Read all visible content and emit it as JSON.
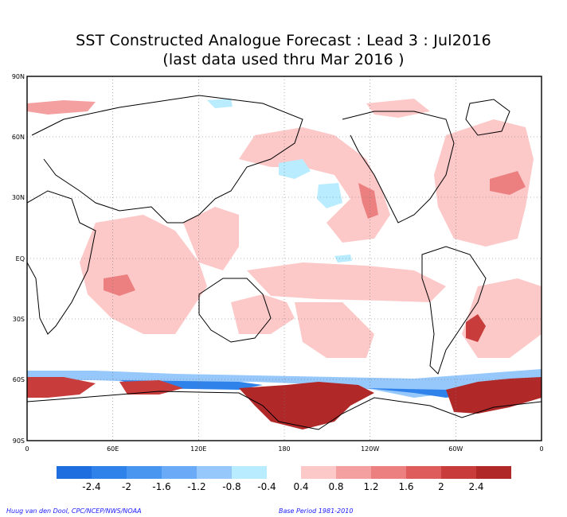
{
  "title": {
    "line1": "SST Constructed Analogue Forecast : Lead 3 : Jul2016",
    "line2": "(last data used thru Mar 2016 )"
  },
  "axes": {
    "lat_labels": [
      "90N",
      "60N",
      "30N",
      "EQ",
      "30S",
      "60S",
      "90S"
    ],
    "lon_labels": [
      "0",
      "60E",
      "120E",
      "180",
      "120W",
      "60W",
      "0"
    ]
  },
  "colorbar": {
    "labels": [
      "-2.4",
      "-2",
      "-1.6",
      "-1.2",
      "-0.8",
      "-0.4",
      "0.4",
      "0.8",
      "1.2",
      "1.6",
      "2",
      "2.4"
    ],
    "negative_colors": [
      "#1e6ee0",
      "#2f82ea",
      "#4896f0",
      "#6aaaf6",
      "#96c8fb",
      "#b8ecfe"
    ],
    "positive_colors": [
      "#fdc8c8",
      "#f5a0a0",
      "#ec8080",
      "#de5c5c",
      "#c83c3c",
      "#b02828"
    ]
  },
  "footer": {
    "credit": "Huug van den Dool, CPC/NCEP/NWS/NOAA",
    "base_period": "Base Period 1981-2010"
  }
}
